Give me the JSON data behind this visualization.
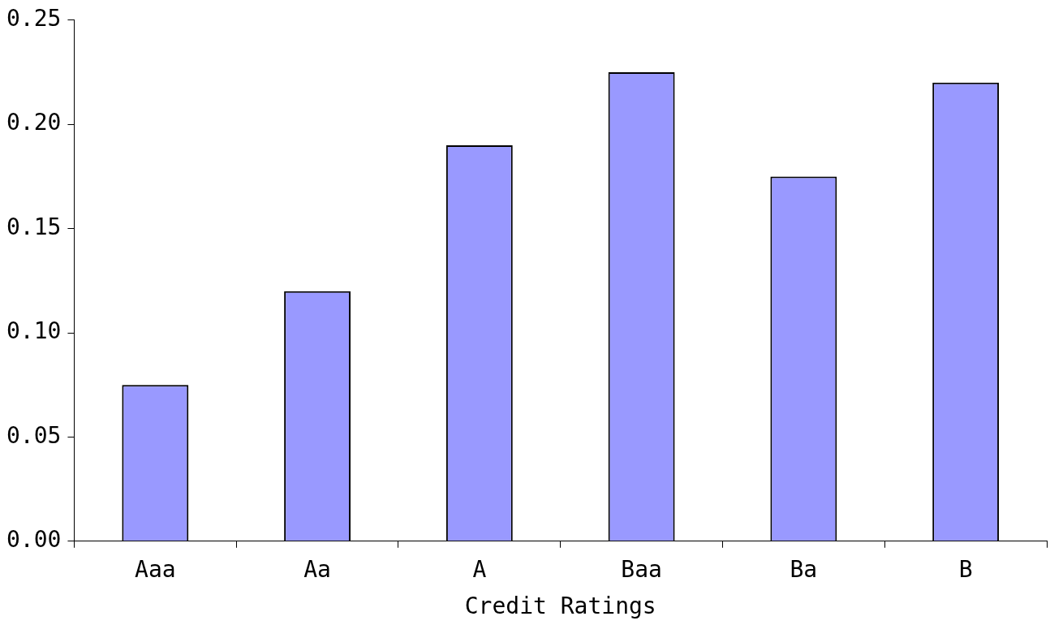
{
  "chart_data": {
    "type": "bar",
    "xlabel": "Credit Ratings",
    "categories": [
      "Aaa",
      "Aa",
      "A",
      "Baa",
      "Ba",
      "B"
    ],
    "values": [
      0.075,
      0.12,
      0.19,
      0.225,
      0.175,
      0.22
    ],
    "color": "#9999ff",
    "ylim": [
      0,
      0.25
    ],
    "yticks": [
      {
        "value": 0,
        "label": "0.00"
      },
      {
        "value": 0.05,
        "label": "0.05"
      },
      {
        "value": 0.1,
        "label": "0.10"
      },
      0.15,
      {
        "value": 0.2,
        "label": "0.20"
      },
      0.25
    ],
    "grid": false,
    "legend": false
  }
}
